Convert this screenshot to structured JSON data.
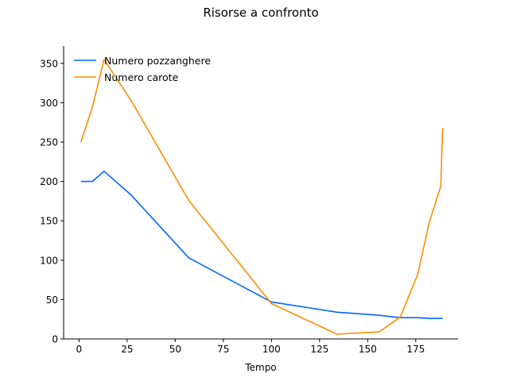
{
  "chart_data": {
    "type": "line",
    "title": "Risorse a confronto",
    "xlabel": "Tempo",
    "ylabel": "",
    "xlim": [
      -8,
      197
    ],
    "ylim": [
      0,
      372
    ],
    "xticks": [
      0,
      25,
      50,
      75,
      100,
      125,
      150,
      175
    ],
    "yticks": [
      0,
      50,
      100,
      150,
      200,
      250,
      300,
      350
    ],
    "grid": false,
    "legend": "top-left",
    "series": [
      {
        "name": "Numero pozzanghere",
        "color": "#0066ff",
        "x": [
          1,
          7,
          13,
          27,
          57,
          100,
          134,
          156,
          167,
          176,
          182,
          189
        ],
        "y": [
          200,
          200,
          213,
          183,
          103,
          47,
          34,
          30,
          27,
          27,
          26,
          26
        ]
      },
      {
        "name": "Numero carote",
        "color": "#ff8c00",
        "x": [
          1,
          7,
          13,
          27,
          57,
          100,
          134,
          156,
          167,
          176,
          182,
          188,
          189
        ],
        "y": [
          250,
          295,
          355,
          303,
          176,
          45,
          6,
          9,
          28,
          82,
          148,
          194,
          268
        ]
      }
    ]
  }
}
